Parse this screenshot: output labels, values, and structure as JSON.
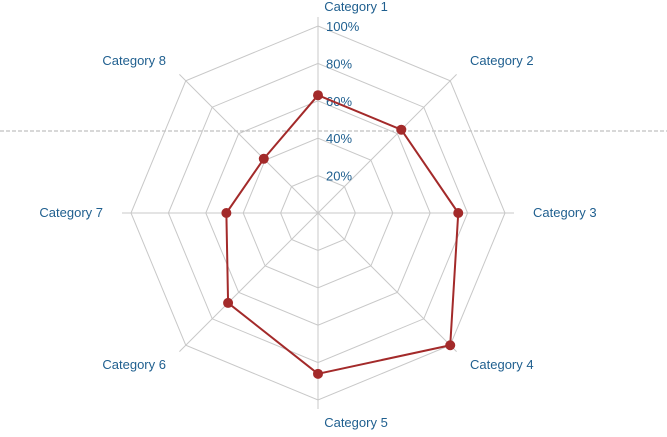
{
  "chart_data": {
    "type": "radar",
    "categories": [
      "Category 1",
      "Category 2",
      "Category 3",
      "Category 4",
      "Category 5",
      "Category 6",
      "Category 7",
      "Category 8"
    ],
    "series": [
      {
        "values": [
          63,
          63,
          75,
          100,
          86,
          68,
          49,
          41
        ]
      }
    ],
    "radial_ticks": [
      "20%",
      "40%",
      "60%",
      "80%",
      "100%"
    ],
    "radial_range": [
      0,
      100
    ],
    "grid": true,
    "grid_shape": "octagon",
    "reference_line": {
      "orientation": "horizontal",
      "style": "dashed"
    },
    "colors": {
      "series": "#a32a2a",
      "grid": "#c8c8c8",
      "label": "#1f5f8f",
      "reference_line": "#b0b0b0"
    }
  }
}
